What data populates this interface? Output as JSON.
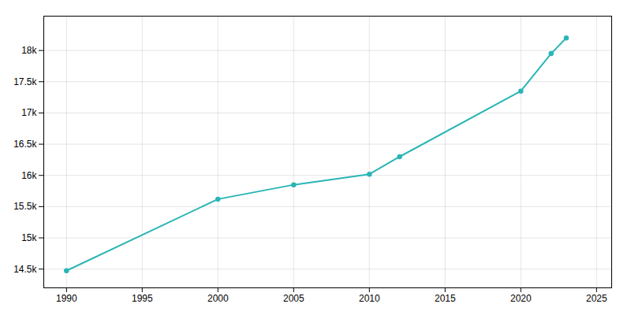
{
  "chart_data": {
    "type": "line",
    "x": [
      1990,
      2000,
      2005,
      2010,
      2012,
      2020,
      2022,
      2023
    ],
    "values": [
      14474,
      15620,
      15850,
      16020,
      16300,
      17350,
      17950,
      18200
    ],
    "color": "#2ab5b5",
    "marker": "circle",
    "xlim": [
      1988.5,
      2026
    ],
    "ylim": [
      14200,
      18550
    ],
    "xticks": [
      1990,
      1995,
      2000,
      2005,
      2010,
      2015,
      2020,
      2025
    ],
    "yticks": [
      {
        "value": 14500,
        "label": "14.5k"
      },
      {
        "value": 15000,
        "label": "15k"
      },
      {
        "value": 15500,
        "label": "15.5k"
      },
      {
        "value": 16000,
        "label": "16k"
      },
      {
        "value": 16500,
        "label": "16.5k"
      },
      {
        "value": 17000,
        "label": "17k"
      },
      {
        "value": 17500,
        "label": "17.5k"
      },
      {
        "value": 18000,
        "label": "18k"
      }
    ],
    "grid": true
  }
}
